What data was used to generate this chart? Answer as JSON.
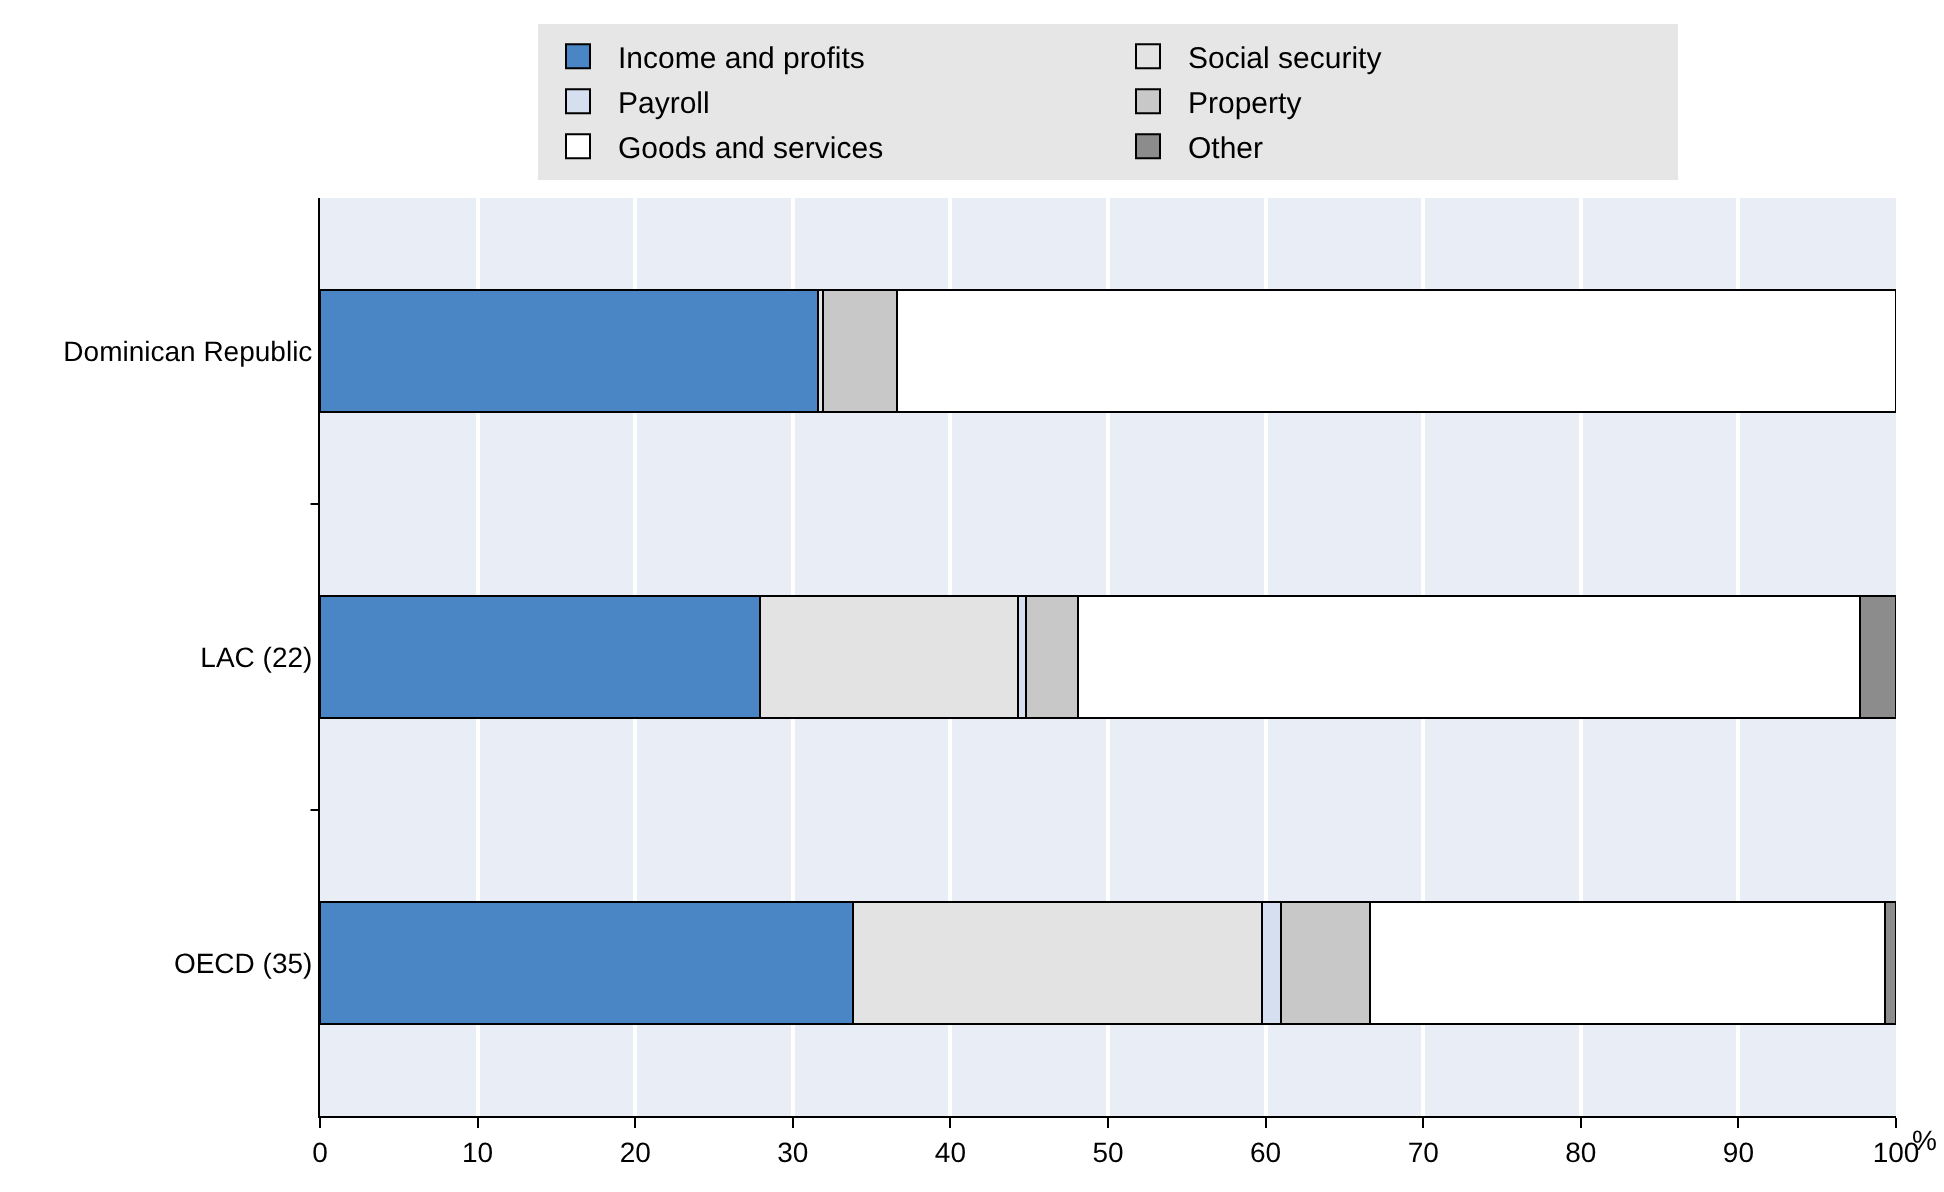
{
  "chart_data": {
    "type": "bar",
    "orientation": "horizontal",
    "stacked": true,
    "categories": [
      "Dominican Republic",
      "LAC (22)",
      "OECD (35)"
    ],
    "series": [
      {
        "name": "Income and profits",
        "color": "#4a86c5",
        "values": [
          31.6,
          27.9,
          33.8
        ]
      },
      {
        "name": "Social security",
        "color": "#e3e3e3",
        "values": [
          0.3,
          16.4,
          26.0
        ]
      },
      {
        "name": "Payroll",
        "color": "#d5dff0",
        "values": [
          null,
          0.5,
          1.2
        ]
      },
      {
        "name": "Property",
        "color": "#c8c8c8",
        "values": [
          4.7,
          3.3,
          5.6
        ]
      },
      {
        "name": "Goods and services",
        "color": "#ffffff",
        "values": [
          63.4,
          49.6,
          32.7
        ]
      },
      {
        "name": "Other",
        "color": "#8c8c8c",
        "values": [
          null,
          2.3,
          0.7
        ]
      }
    ],
    "xlabel": "%",
    "xlim": [
      0,
      100
    ],
    "xticks": [
      0,
      10,
      20,
      30,
      40,
      50,
      60,
      70,
      80,
      90,
      100
    ],
    "grid": "x",
    "legend": "top"
  }
}
